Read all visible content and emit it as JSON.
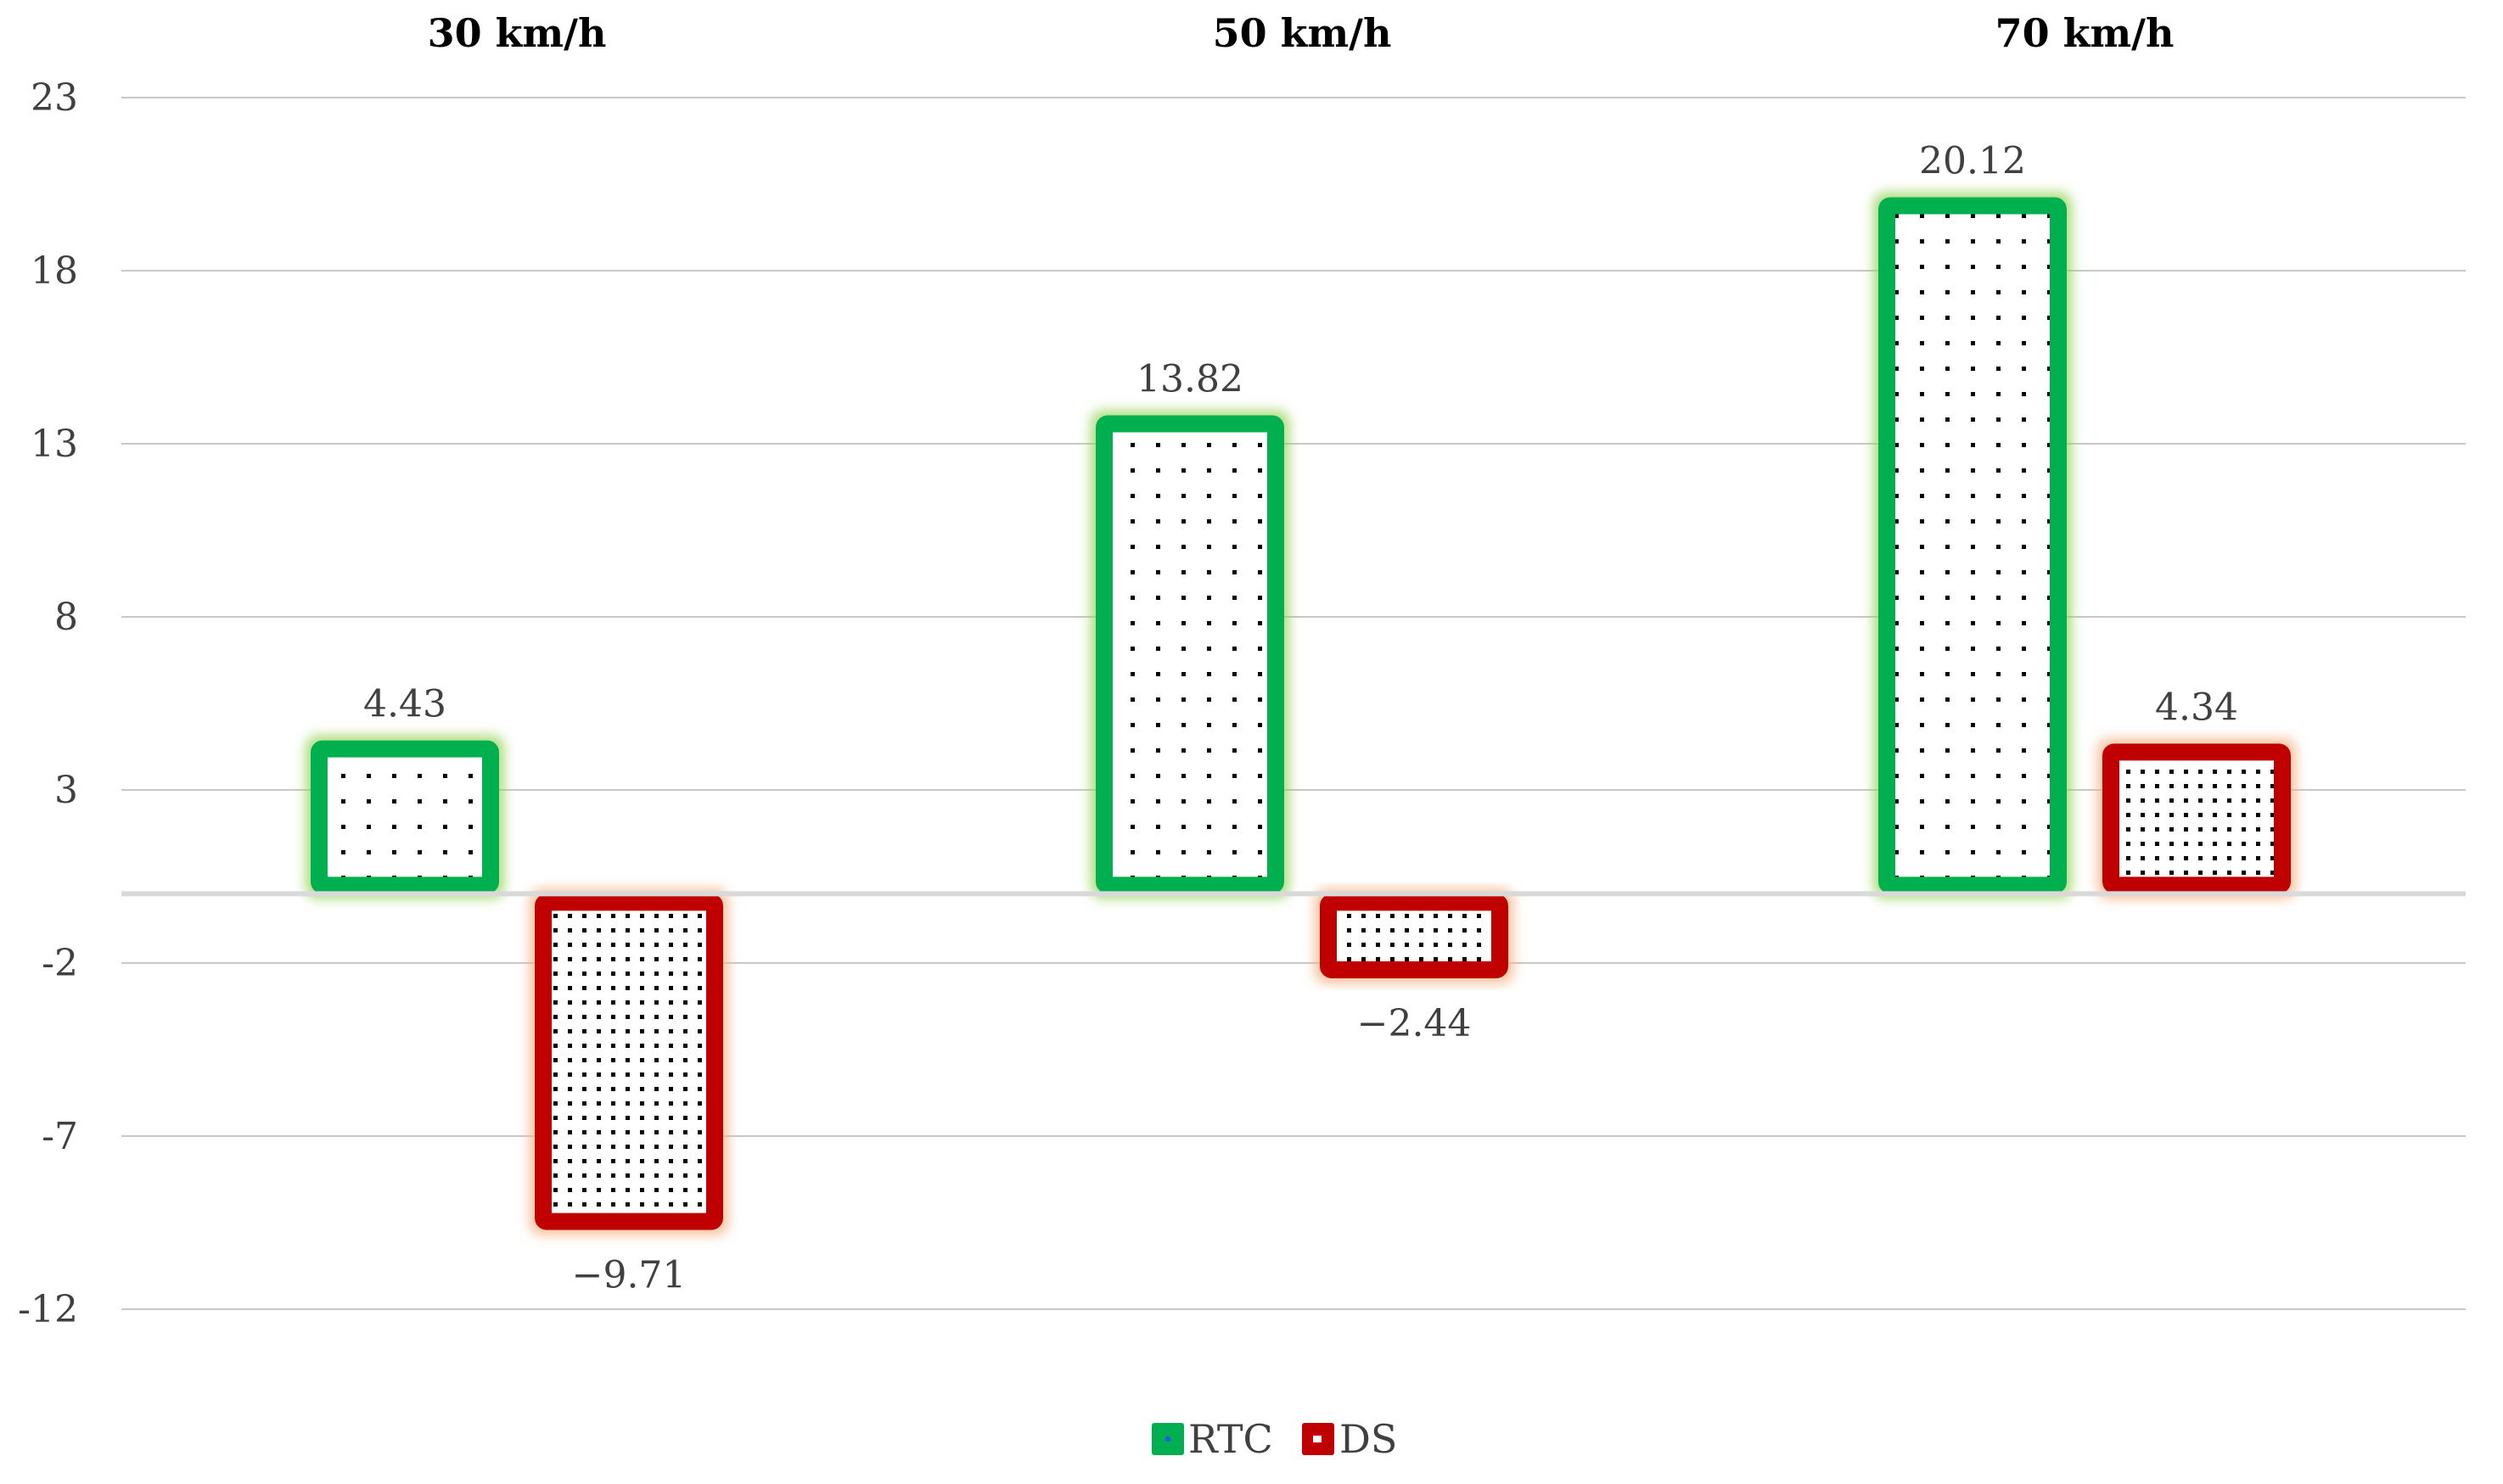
{
  "chart_data": {
    "type": "bar",
    "categories": [
      "30 km/h",
      "50 km/h",
      "70 km/h"
    ],
    "series": [
      {
        "name": "RTC",
        "values": [
          4.43,
          13.82,
          20.12
        ],
        "labels": [
          "4.43",
          "13.82",
          "20.12"
        ],
        "color": "#00b050",
        "glow": "#92d050",
        "pattern": "sparse-dots"
      },
      {
        "name": "DS",
        "values": [
          -9.71,
          -2.44,
          4.34
        ],
        "labels": [
          "−9.71",
          "−2.44",
          "4.34"
        ],
        "color": "#c00000",
        "glow": "#f4b183",
        "pattern": "dense-dots"
      }
    ],
    "yticks": [
      "23",
      "18",
      "13",
      "8",
      "3",
      "-2",
      "-7",
      "-12"
    ],
    "ylim": [
      -12,
      23
    ],
    "grid": true,
    "legend_position": "bottom",
    "category_labels_position": "top"
  }
}
